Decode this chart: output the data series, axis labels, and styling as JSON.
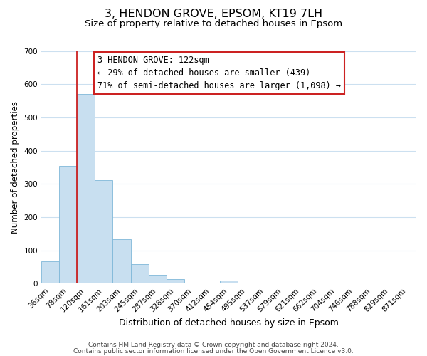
{
  "title": "3, HENDON GROVE, EPSOM, KT19 7LH",
  "subtitle": "Size of property relative to detached houses in Epsom",
  "xlabel": "Distribution of detached houses by size in Epsom",
  "ylabel": "Number of detached properties",
  "bar_labels": [
    "36sqm",
    "78sqm",
    "120sqm",
    "161sqm",
    "203sqm",
    "245sqm",
    "287sqm",
    "328sqm",
    "370sqm",
    "412sqm",
    "454sqm",
    "495sqm",
    "537sqm",
    "579sqm",
    "621sqm",
    "662sqm",
    "704sqm",
    "746sqm",
    "788sqm",
    "829sqm",
    "871sqm"
  ],
  "bar_values": [
    68,
    355,
    570,
    312,
    133,
    58,
    27,
    14,
    0,
    0,
    10,
    0,
    3,
    0,
    0,
    0,
    0,
    0,
    0,
    0,
    0
  ],
  "bar_color": "#c8dff0",
  "bar_edge_color": "#7fb8d8",
  "vline_color": "#cc2222",
  "vline_x_index": 2,
  "ylim": [
    0,
    700
  ],
  "yticks": [
    0,
    100,
    200,
    300,
    400,
    500,
    600,
    700
  ],
  "annotation_line1": "3 HENDON GROVE: 122sqm",
  "annotation_line2": "← 29% of detached houses are smaller (439)",
  "annotation_line3": "71% of semi-detached houses are larger (1,098) →",
  "footer_line1": "Contains HM Land Registry data © Crown copyright and database right 2024.",
  "footer_line2": "Contains public sector information licensed under the Open Government Licence v3.0.",
  "background_color": "#ffffff",
  "grid_color": "#cce0f0",
  "title_fontsize": 11.5,
  "subtitle_fontsize": 9.5,
  "xlabel_fontsize": 9,
  "ylabel_fontsize": 8.5,
  "tick_fontsize": 7.5,
  "ann_fontsize": 8.5,
  "footer_fontsize": 6.5
}
